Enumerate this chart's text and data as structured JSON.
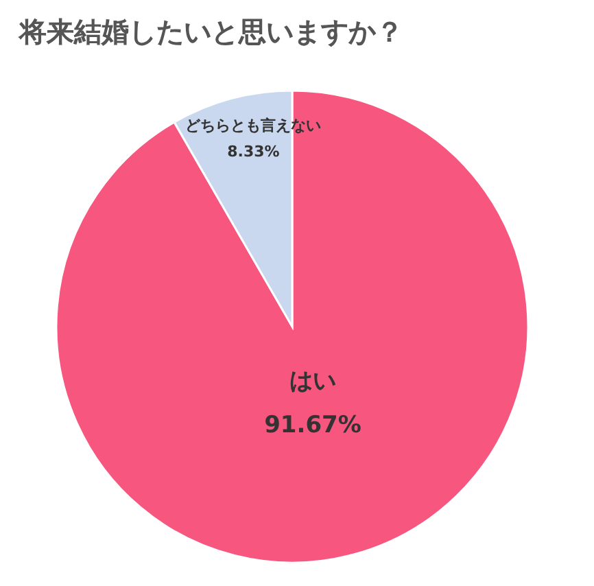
{
  "chart_data": {
    "type": "pie",
    "title": "将来結婚したいと思いますか？",
    "categories": [
      "はい",
      "どちらとも言えない"
    ],
    "values": [
      91.67,
      8.33
    ],
    "colors": [
      "#f7577f",
      "#c9d7ef"
    ],
    "value_labels": [
      "91.67%",
      "8.33%"
    ],
    "legend": false
  }
}
